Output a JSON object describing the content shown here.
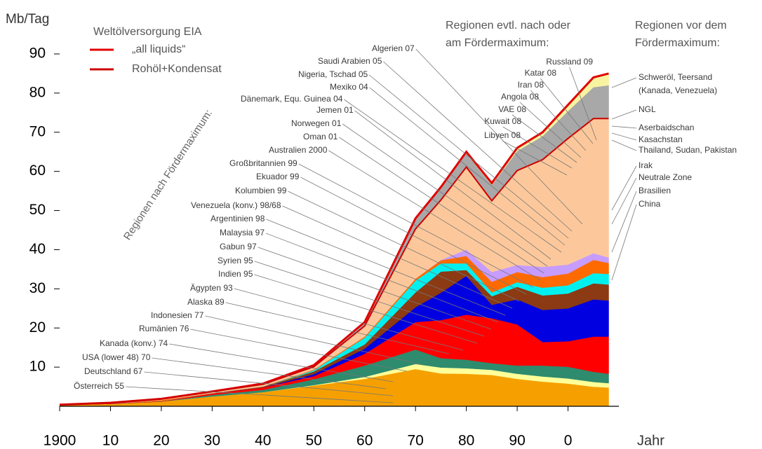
{
  "chart_data": {
    "type": "area",
    "stacked": true,
    "y_label": "Mb/Tag",
    "x_label": "Jahr",
    "legend_title": "Weltölversorgung EIA",
    "x": [
      1900,
      1910,
      1920,
      1930,
      1940,
      1950,
      1960,
      1970,
      1975,
      1980,
      1985,
      1990,
      1995,
      2000,
      2005,
      2008
    ],
    "xlim": [
      1900,
      2010
    ],
    "xticks": [
      1900,
      {
        "value": 1910,
        "label": "10"
      },
      {
        "value": 1920,
        "label": "20"
      },
      {
        "value": 1930,
        "label": "30"
      },
      {
        "value": 1940,
        "label": "40"
      },
      {
        "value": 1950,
        "label": "50"
      },
      {
        "value": 1960,
        "label": "60"
      },
      {
        "value": 1970,
        "label": "70"
      },
      {
        "value": 1980,
        "label": "80"
      },
      {
        "value": 1990,
        "label": "90"
      },
      {
        "value": 2000,
        "label": "0"
      }
    ],
    "ylim": [
      0,
      90
    ],
    "yticks": [
      10,
      20,
      30,
      40,
      50,
      60,
      70,
      80,
      90
    ],
    "series": [
      {
        "name": "USA (lower 48) 70",
        "color": "#f5a000",
        "values": [
          0.3,
          0.6,
          1.2,
          2.5,
          3.6,
          5.3,
          7,
          9.5,
          8.4,
          8.3,
          8,
          7,
          6.3,
          5.8,
          5,
          4.8
        ]
      },
      {
        "name": "Kanada (konv.) 74",
        "color": "#ffff99",
        "values": [
          0,
          0,
          0,
          0,
          0,
          0.1,
          0.5,
          1.3,
          1.5,
          1.4,
          1.3,
          1.3,
          1.3,
          1.3,
          1.2,
          1.1
        ]
      },
      {
        "name": "Venezuela (konv.)  98/68",
        "color": "#2e8b6e",
        "values": [
          0,
          0,
          0,
          0.4,
          0.6,
          1.5,
          2.9,
          3.7,
          2.4,
          2.2,
          1.7,
          2.1,
          2.8,
          3,
          2.6,
          2.4
        ]
      },
      {
        "name": "Russland 09",
        "color": "#ff0000",
        "values": [
          0,
          0.1,
          0.1,
          0.4,
          0.6,
          0.8,
          3,
          7,
          9.7,
          11.5,
          11.5,
          10.5,
          6,
          6.5,
          9,
          9.5
        ]
      },
      {
        "name": "Saudi Arabien 05",
        "color": "#0000e0",
        "values": [
          0,
          0,
          0,
          0,
          0,
          0.5,
          1.3,
          3.8,
          7,
          9.9,
          3.4,
          6.4,
          8.2,
          8.4,
          9.5,
          9.2
        ]
      },
      {
        "name": "Iran 08",
        "color": "#8b3a13",
        "values": [
          0,
          0,
          0,
          0,
          0.2,
          0.7,
          1.1,
          3.8,
          5.4,
          1.5,
          2.2,
          3.2,
          3.7,
          3.8,
          4.1,
          4.1
        ]
      },
      {
        "name": "Kuwait 08",
        "color": "#00f0f0",
        "values": [
          0,
          0,
          0,
          0,
          0,
          0.3,
          1.7,
          3,
          2.1,
          1.7,
          1,
          1.2,
          2,
          2.1,
          2.6,
          2.7
        ]
      },
      {
        "name": "Mexiko 04",
        "color": "#ff6a00",
        "values": [
          0,
          0,
          0.3,
          0.1,
          0.1,
          0.2,
          0.3,
          0.5,
          0.8,
          1.9,
          2.7,
          2.6,
          2.7,
          3,
          3.4,
          2.8
        ]
      },
      {
        "name": "Großbritannien 99",
        "color": "#c79cff",
        "values": [
          0,
          0,
          0,
          0,
          0,
          0,
          0,
          0,
          0.1,
          1.6,
          2.5,
          1.8,
          2.6,
          2.3,
          1.7,
          1.4
        ]
      },
      {
        "name": "Irak",
        "color": "#fcc89b",
        "values": [
          0.1,
          0.2,
          0.3,
          0.3,
          0.5,
          0.7,
          2.7,
          12.7,
          15.3,
          21.1,
          18.2,
          24.1,
          27.4,
          32.2,
          34.4,
          35.5
        ]
      },
      {
        "name": "NGL",
        "color": "#a8a8a8",
        "values": [
          0,
          0,
          0,
          0.1,
          0.2,
          0.4,
          1,
          2.5,
          3,
          3.5,
          4,
          5,
          6,
          7,
          8,
          8.5
        ]
      },
      {
        "name": "Schweröl, Teersand",
        "color": "#f7f3a0",
        "values": [
          0,
          0,
          0,
          0,
          0,
          0,
          0,
          0.2,
          0.3,
          0.4,
          0.5,
          0.8,
          1,
          1.6,
          2.5,
          3
        ]
      }
    ],
    "lines": [
      {
        "name": "„all liquids“",
        "color": "#e00000",
        "values": [
          0.4,
          0.9,
          1.9,
          3.8,
          5.8,
          10.5,
          21.5,
          48,
          56,
          65,
          57,
          66,
          70,
          77,
          84,
          85
        ]
      },
      {
        "name": "Rohöl+Kondensat",
        "color": "#cc0000",
        "values": [
          0.4,
          0.9,
          1.9,
          3.7,
          5.6,
          10.1,
          20.5,
          45.3,
          52.7,
          61.1,
          52.5,
          60.2,
          63,
          68.4,
          73.5,
          73.5
        ]
      }
    ],
    "annotations": [
      "Österreich 55",
      "Deutschland 67",
      "Rumänien 76",
      "Indonesien 77",
      "Alaska 89",
      "Ägypten 93",
      "Indien 95",
      "Syrien 95",
      "Gabun 97",
      "Malaysia 97",
      "Argentinien 98",
      "Kolumbien 99",
      "Ekuador 99",
      "Australien 2000",
      "Oman 01",
      "Norwegen 01",
      "Jemen 01",
      "Dänemark, Equ. Guinea 04",
      "Nigeria, Tschad 05",
      "Algerien 07",
      "Katar 08",
      "Angola 08",
      "VAE 08",
      "Libyen 08",
      "(Kanada, Venezuela)",
      "Aserbaidschan",
      "Kasachstan",
      "Thailand, Sudan, Pakistan",
      "Neutrale Zone",
      "Brasilien",
      "China",
      "Regionen nach Fördermaximum:",
      "Regionen evtl. nach oder",
      "am Fördermaximum:",
      "Regionen vor dem",
      "Fördermaximum:"
    ]
  }
}
